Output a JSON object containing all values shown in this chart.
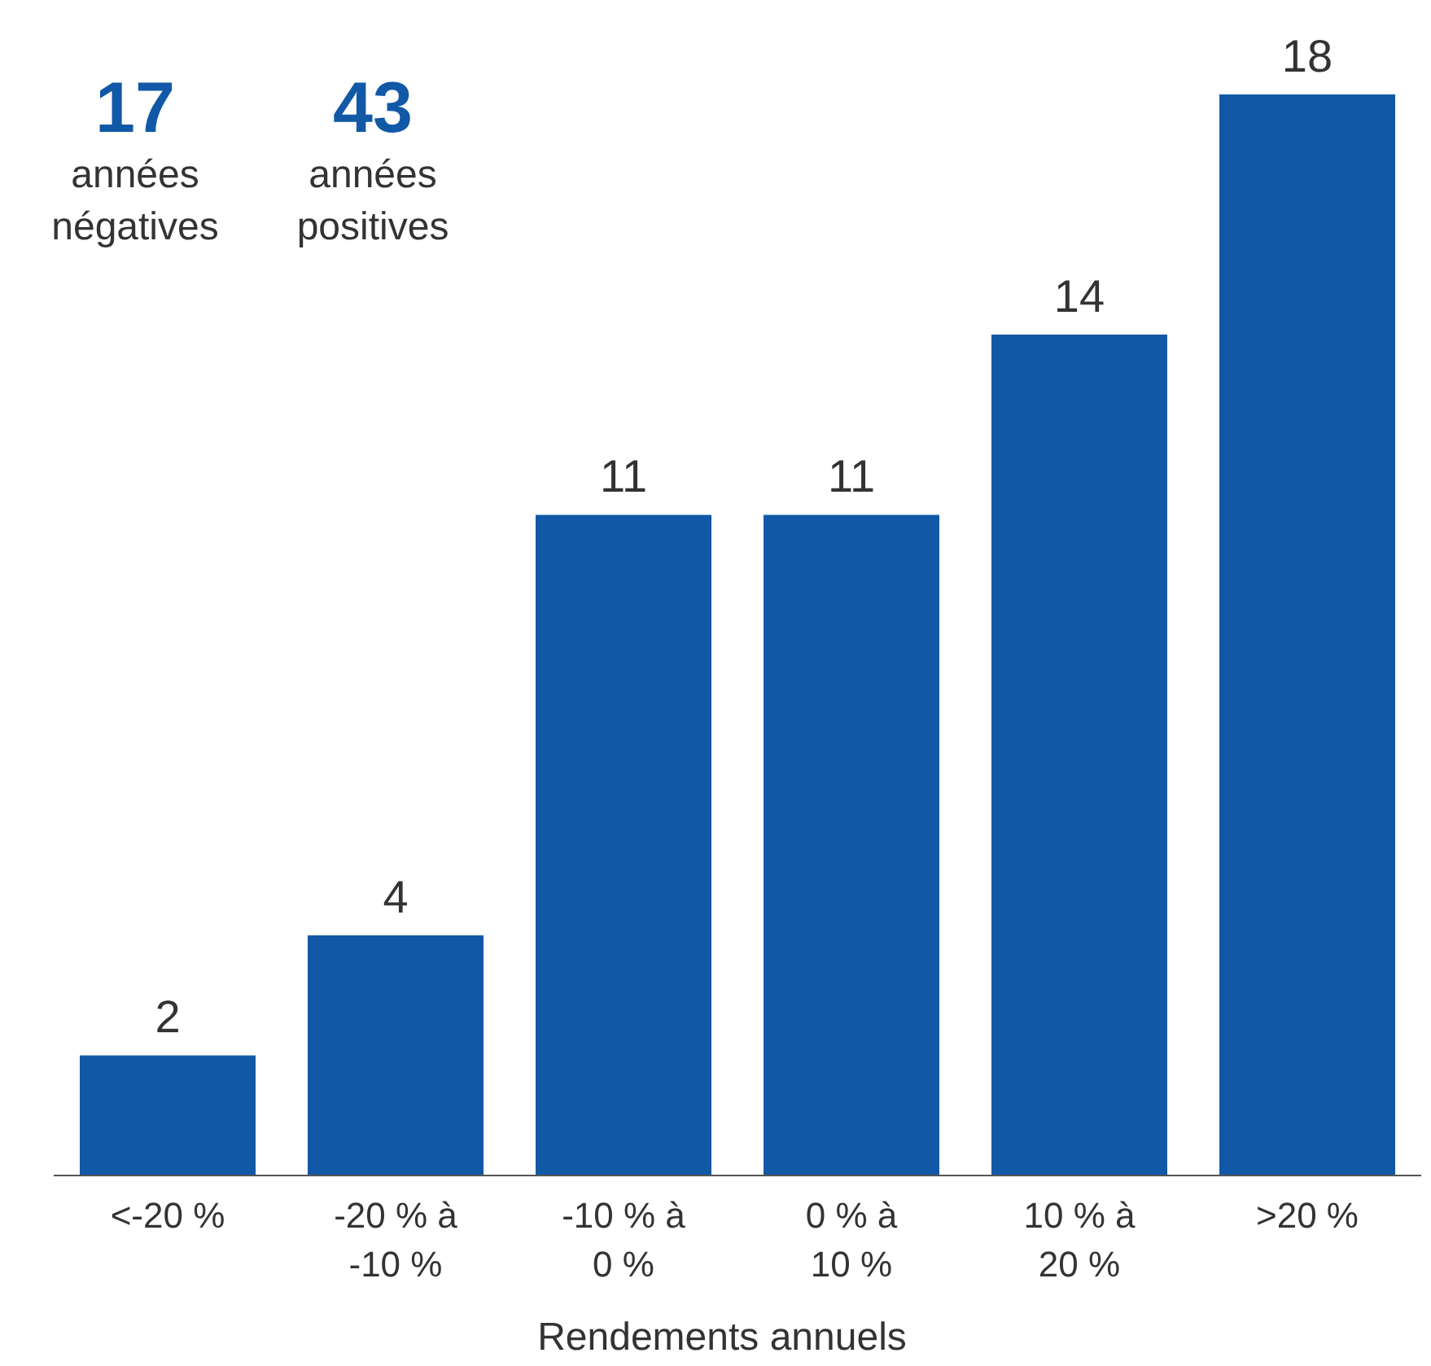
{
  "chart_data": {
    "type": "bar",
    "categories": [
      "<-20 %",
      "-20 % à\n-10 %",
      "-10 % à\n0 %",
      "0 % à\n10 %",
      "10 % à\n20 %",
      ">20 %"
    ],
    "values": [
      2,
      4,
      11,
      11,
      14,
      18
    ],
    "color": "#1159a7",
    "data_labels": true,
    "xlabel": "Rendements annuels",
    "annotations": [
      "17",
      "années\nnégatives",
      "43",
      "années\npositives"
    ]
  }
}
